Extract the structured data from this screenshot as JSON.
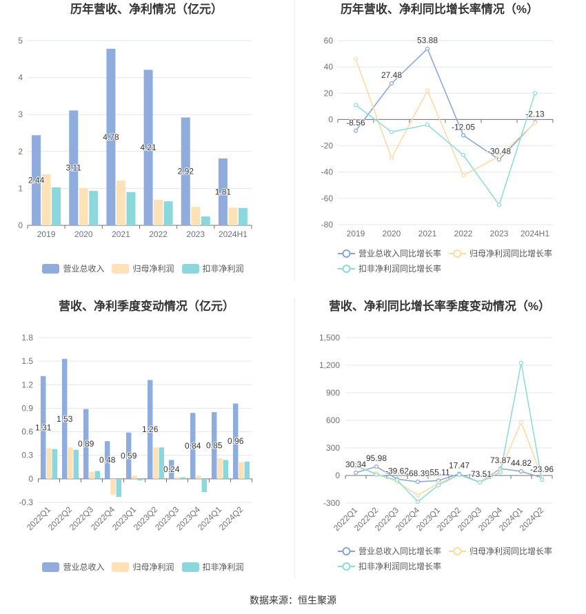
{
  "source": "数据来源：恒生聚源",
  "chart_data": [
    {
      "type": "bar",
      "title": "历年营收、净利情况（亿元）",
      "categories": [
        "2019",
        "2020",
        "2021",
        "2022",
        "2023",
        "2024H1"
      ],
      "ylim": [
        0,
        5
      ],
      "yticks": [
        0,
        1,
        2,
        3,
        4,
        5
      ],
      "ytick_labels": [
        "0",
        "1",
        "2",
        "3",
        "4",
        "5"
      ],
      "grid": true,
      "legend": "bottom",
      "series": [
        {
          "name": "营业总收入",
          "color": "#8facdc",
          "values": [
            2.44,
            3.11,
            4.78,
            4.21,
            2.92,
            1.81
          ],
          "data_labels": [
            "2.44",
            "3.11",
            "4.78",
            "4.21",
            "2.92",
            "1.81"
          ]
        },
        {
          "name": "归母净利润",
          "color": "#fde2b8",
          "values": [
            1.38,
            1.01,
            1.21,
            0.69,
            0.5,
            0.48
          ]
        },
        {
          "name": "扣非净利润",
          "color": "#8cd7dc",
          "values": [
            1.03,
            0.93,
            0.9,
            0.65,
            0.24,
            0.47
          ]
        }
      ]
    },
    {
      "type": "line",
      "title": "历年营收、净利同比增长率情况（%）",
      "categories": [
        "2019",
        "2020",
        "2021",
        "2022",
        "2023",
        "2024H1"
      ],
      "ylim": [
        -80,
        60
      ],
      "yticks": [
        -80,
        -60,
        -40,
        -20,
        0,
        20,
        40,
        60
      ],
      "ytick_labels": [
        "-80",
        "-60",
        "-40",
        "-20",
        "0",
        "20",
        "40",
        "60"
      ],
      "grid": true,
      "legend": "bottom",
      "series": [
        {
          "name": "营业总收入同比增长率",
          "color": "#86a3d8",
          "values": [
            -8.56,
            27.48,
            53.88,
            -12.05,
            -30.48,
            -2.13
          ],
          "data_labels": [
            "-8.56",
            "27.48",
            "53.88",
            "-12.05",
            "-30.48",
            "-2.13"
          ]
        },
        {
          "name": "归母净利润同比增长率",
          "color": "#fdd9a2",
          "values": [
            46,
            -29.5,
            22,
            -42.5,
            -28,
            -2.5
          ]
        },
        {
          "name": "扣非净利润同比增长率",
          "color": "#8bd9db",
          "values": [
            11,
            -9.5,
            -4,
            -27,
            -65,
            20
          ]
        }
      ]
    },
    {
      "type": "bar",
      "title": "营收、净利季度变动情况（亿元）",
      "categories": [
        "2022Q1",
        "2022Q2",
        "2022Q3",
        "2022Q4",
        "2023Q1",
        "2023Q2",
        "2023Q3",
        "2023Q4",
        "2024Q1",
        "2024Q2"
      ],
      "ylim": [
        -0.3,
        1.8
      ],
      "yticks": [
        -0.3,
        0,
        0.3,
        0.6,
        0.9,
        1.2,
        1.5,
        1.8
      ],
      "ytick_labels": [
        "-0.3",
        "0",
        "0.3",
        "0.6",
        "0.9",
        "1.2",
        "1.5",
        "1.8"
      ],
      "grid": true,
      "legend": "bottom",
      "series": [
        {
          "name": "营业总收入",
          "color": "#8facdc",
          "values": [
            1.31,
            1.53,
            0.89,
            0.48,
            0.59,
            1.26,
            0.24,
            0.84,
            0.85,
            0.96
          ],
          "data_labels": [
            "1.31",
            "1.53",
            "0.89",
            "0.48",
            "0.59",
            "1.26",
            "0.24",
            "0.84",
            "0.85",
            "0.96"
          ]
        },
        {
          "name": "归母净利润",
          "color": "#fde2b8",
          "values": [
            0.39,
            0.4,
            0.09,
            -0.2,
            0.04,
            0.4,
            0.02,
            0.04,
            0.26,
            0.21
          ]
        },
        {
          "name": "扣非净利润",
          "color": "#8cd7dc",
          "values": [
            0.38,
            0.37,
            0.1,
            -0.23,
            -0.02,
            0.4,
            0.02,
            -0.17,
            0.24,
            0.22
          ]
        }
      ]
    },
    {
      "type": "line",
      "title": "营收、净利同比增长率季度变动情况（%）",
      "categories": [
        "2022Q1",
        "2022Q2",
        "2022Q3",
        "2022Q4",
        "2023Q1",
        "2023Q2",
        "2023Q3",
        "2023Q4",
        "2024Q1",
        "2024Q2"
      ],
      "ylim": [
        -300,
        1500
      ],
      "yticks": [
        -300,
        0,
        300,
        600,
        900,
        1200,
        1500
      ],
      "ytick_labels": [
        "-300",
        "0",
        "300",
        "600",
        "900",
        "1,200",
        "1,500"
      ],
      "grid": true,
      "legend": "bottom",
      "series": [
        {
          "name": "营业总收入同比增长率",
          "color": "#86a3d8",
          "values": [
            30.34,
            95.98,
            -39.62,
            -68.39,
            -55.11,
            17.47,
            -73.51,
            73.87,
            44.82,
            -23.96
          ],
          "data_labels": [
            "30.34",
            "95.98",
            "-39.62",
            "-68.39",
            "-55.11",
            "17.47",
            "-73.51",
            "73.87",
            "44.82",
            "-23.96"
          ]
        },
        {
          "name": "归母净利润同比增长率",
          "color": "#fdd9a2",
          "values": [
            95,
            25,
            -70,
            -215,
            -85,
            5,
            -75,
            65,
            578,
            -20
          ]
        },
        {
          "name": "扣非净利润同比增长率",
          "color": "#8bd9db",
          "values": [
            110,
            10,
            -50,
            -285,
            -105,
            10,
            -75,
            35,
            1225,
            -48
          ]
        }
      ]
    }
  ]
}
